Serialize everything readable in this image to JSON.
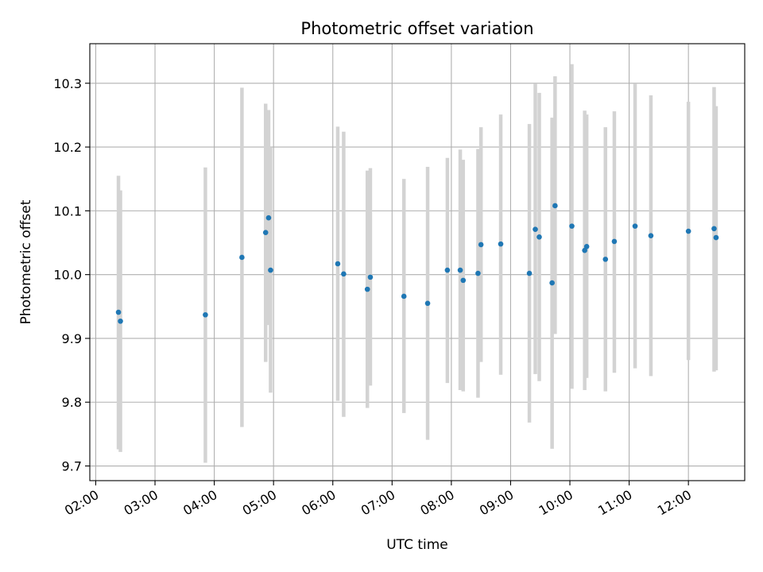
{
  "chart_data": {
    "type": "scatter",
    "title": "Photometric offset variation",
    "xlabel": "UTC time",
    "ylabel": "Photometric offset",
    "x_scale": "time",
    "xlim": [
      "01:54",
      "12:57"
    ],
    "ylim": [
      9.677,
      10.362
    ],
    "x_ticks": [
      "02:00",
      "03:00",
      "04:00",
      "05:00",
      "06:00",
      "07:00",
      "08:00",
      "09:00",
      "10:00",
      "11:00",
      "12:00"
    ],
    "y_ticks": [
      "9.7",
      "9.8",
      "9.9",
      "10.0",
      "10.1",
      "10.2",
      "10.3"
    ],
    "grid": true,
    "legend": "none",
    "colors": {
      "marker": "#1f77b4",
      "error_bar": "#d3d3d3",
      "grid": "#b0b0b0"
    },
    "series": [
      {
        "points": [
          {
            "x": "02:23",
            "y": 9.941,
            "low": 9.726,
            "high": 10.155
          },
          {
            "x": "02:25",
            "y": 9.927,
            "low": 9.722,
            "high": 10.132
          },
          {
            "x": "03:51",
            "y": 9.937,
            "low": 9.705,
            "high": 10.168
          },
          {
            "x": "04:28",
            "y": 10.027,
            "low": 9.761,
            "high": 10.293
          },
          {
            "x": "04:52",
            "y": 10.066,
            "low": 9.863,
            "high": 10.268
          },
          {
            "x": "04:55",
            "y": 10.089,
            "low": 9.921,
            "high": 10.258
          },
          {
            "x": "04:57",
            "y": 10.007,
            "low": 9.815,
            "high": 10.199
          },
          {
            "x": "06:05",
            "y": 10.017,
            "low": 9.802,
            "high": 10.232
          },
          {
            "x": "06:11",
            "y": 10.001,
            "low": 9.777,
            "high": 10.224
          },
          {
            "x": "06:35",
            "y": 9.977,
            "low": 9.791,
            "high": 10.163
          },
          {
            "x": "06:38",
            "y": 9.996,
            "low": 9.826,
            "high": 10.167
          },
          {
            "x": "07:12",
            "y": 9.966,
            "low": 9.783,
            "high": 10.15
          },
          {
            "x": "07:36",
            "y": 9.955,
            "low": 9.741,
            "high": 10.169
          },
          {
            "x": "07:56",
            "y": 10.007,
            "low": 9.83,
            "high": 10.183
          },
          {
            "x": "08:09",
            "y": 10.007,
            "low": 9.819,
            "high": 10.196
          },
          {
            "x": "08:12",
            "y": 9.991,
            "low": 9.817,
            "high": 10.18
          },
          {
            "x": "08:27",
            "y": 10.002,
            "low": 9.807,
            "high": 10.197
          },
          {
            "x": "08:30",
            "y": 10.047,
            "low": 9.863,
            "high": 10.231
          },
          {
            "x": "08:50",
            "y": 10.048,
            "low": 9.843,
            "high": 10.251
          },
          {
            "x": "09:19",
            "y": 10.002,
            "low": 9.768,
            "high": 10.236
          },
          {
            "x": "09:25",
            "y": 10.071,
            "low": 9.844,
            "high": 10.299
          },
          {
            "x": "09:29",
            "y": 10.059,
            "low": 9.833,
            "high": 10.285
          },
          {
            "x": "09:42",
            "y": 9.987,
            "low": 9.727,
            "high": 10.246
          },
          {
            "x": "09:45",
            "y": 10.108,
            "low": 9.907,
            "high": 10.311
          },
          {
            "x": "10:02",
            "y": 10.076,
            "low": 9.821,
            "high": 10.33
          },
          {
            "x": "10:15",
            "y": 10.038,
            "low": 9.819,
            "high": 10.257
          },
          {
            "x": "10:17",
            "y": 10.044,
            "low": 9.838,
            "high": 10.251
          },
          {
            "x": "10:36",
            "y": 10.024,
            "low": 9.817,
            "high": 10.231
          },
          {
            "x": "10:45",
            "y": 10.052,
            "low": 9.846,
            "high": 10.256
          },
          {
            "x": "11:06",
            "y": 10.076,
            "low": 9.853,
            "high": 10.299
          },
          {
            "x": "11:22",
            "y": 10.061,
            "low": 9.841,
            "high": 10.281
          },
          {
            "x": "12:00",
            "y": 10.068,
            "low": 9.866,
            "high": 10.271
          },
          {
            "x": "12:26",
            "y": 10.072,
            "low": 9.848,
            "high": 10.294
          },
          {
            "x": "12:28",
            "y": 10.058,
            "low": 9.85,
            "high": 10.264
          }
        ]
      }
    ]
  }
}
